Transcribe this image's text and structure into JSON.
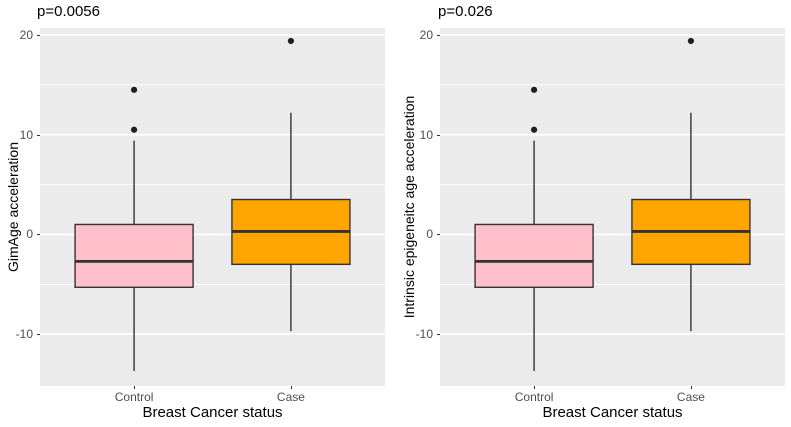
{
  "figure": {
    "background_color": "#FFFFFF",
    "panel_background_color": "#EBEBEB",
    "gridline_color": "#FFFFFF",
    "tick_text_color": "#4D4D4D",
    "box_stroke_color": "#333333",
    "outlier_color": "#1F1F1F"
  },
  "chart_data": [
    {
      "type": "boxplot",
      "title": "p=0.0056",
      "xlabel": "Breast Cancer status",
      "ylabel": "GimAge acceleration",
      "categories": [
        "Control",
        "Case"
      ],
      "yticks": [
        20,
        10,
        0,
        -10
      ],
      "minor_gridlines": [
        15,
        5,
        -5
      ],
      "ylim": [
        -15.2,
        20.7
      ],
      "legend": "none",
      "series": [
        {
          "name": "Control",
          "color": "#FFC0CB",
          "whisker_low": -13.7,
          "q1": -5.3,
          "median": -2.7,
          "q3": 1.0,
          "whisker_high": 9.4,
          "outliers": [
            10.5,
            14.5
          ]
        },
        {
          "name": "Case",
          "color": "#FFA500",
          "whisker_low": -9.7,
          "q1": -3.0,
          "median": 0.3,
          "q3": 3.5,
          "whisker_high": 12.2,
          "outliers": [
            19.4
          ]
        }
      ]
    },
    {
      "type": "boxplot",
      "title": "p=0.026",
      "xlabel": "Breast Cancer status",
      "ylabel": "Intrinsic epigeneitc age acceleration",
      "categories": [
        "Control",
        "Case"
      ],
      "yticks": [
        20,
        10,
        0,
        -10
      ],
      "minor_gridlines": [
        15,
        5,
        -5
      ],
      "ylim": [
        -15.2,
        20.7
      ],
      "legend": "none",
      "series": [
        {
          "name": "Control",
          "color": "#FFC0CB",
          "whisker_low": -13.7,
          "q1": -5.3,
          "median": -2.7,
          "q3": 1.0,
          "whisker_high": 9.4,
          "outliers": [
            10.5,
            14.5
          ]
        },
        {
          "name": "Case",
          "color": "#FFA500",
          "whisker_low": -9.7,
          "q1": -3.0,
          "median": 0.3,
          "q3": 3.5,
          "whisker_high": 12.2,
          "outliers": [
            19.4
          ]
        }
      ]
    }
  ]
}
